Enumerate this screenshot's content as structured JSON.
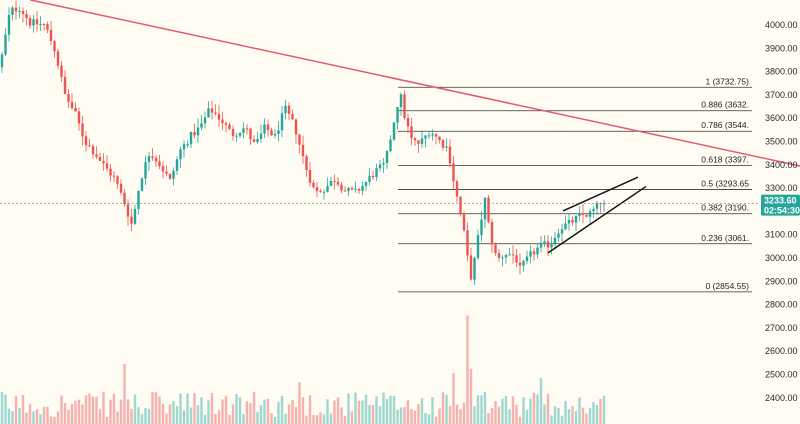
{
  "chart_data": {
    "type": "candlestick",
    "title": "",
    "xlabel": "",
    "ylabel": "",
    "ylim": [
      2360,
      4120
    ],
    "y_ticks": [
      "4000.00",
      "3900.00",
      "3800.00",
      "3700.00",
      "3600.00",
      "3500.00",
      "3400.00",
      "3300.00",
      "3200.00",
      "3100.00",
      "3000.00",
      "2900.00",
      "2800.00",
      "2700.00",
      "2600.00",
      "2500.00",
      "2400.00"
    ],
    "current_price": {
      "value": 3233.6,
      "label": "3233.60",
      "countdown": "02:54:30"
    },
    "fib_levels": [
      {
        "ratio": 1,
        "price": 3732.75,
        "label": "1 (3732.75)"
      },
      {
        "ratio": 0.886,
        "price": 3632,
        "label": "0.886 (3632."
      },
      {
        "ratio": 0.786,
        "price": 3544,
        "label": "0.786 (3544."
      },
      {
        "ratio": 0.618,
        "price": 3397,
        "label": "0.618 (3397."
      },
      {
        "ratio": 0.5,
        "price": 3293.65,
        "label": "0.5 (3293.65"
      },
      {
        "ratio": 0.382,
        "price": 3190,
        "label": "0.382 (3190."
      },
      {
        "ratio": 0.236,
        "price": 3061,
        "label": "0.236 (3061."
      },
      {
        "ratio": 0,
        "price": 2854.55,
        "label": "0 (2854.55)"
      }
    ],
    "price_waypoints": [
      [
        0,
        3820
      ],
      [
        10,
        4060
      ],
      [
        20,
        4075
      ],
      [
        30,
        4010
      ],
      [
        45,
        4000
      ],
      [
        55,
        3890
      ],
      [
        65,
        3700
      ],
      [
        75,
        3620
      ],
      [
        85,
        3500
      ],
      [
        95,
        3450
      ],
      [
        105,
        3390
      ],
      [
        115,
        3340
      ],
      [
        125,
        3230
      ],
      [
        132,
        3140
      ],
      [
        140,
        3330
      ],
      [
        150,
        3460
      ],
      [
        160,
        3400
      ],
      [
        170,
        3330
      ],
      [
        180,
        3460
      ],
      [
        190,
        3520
      ],
      [
        200,
        3560
      ],
      [
        210,
        3640
      ],
      [
        220,
        3600
      ],
      [
        232,
        3530
      ],
      [
        245,
        3560
      ],
      [
        255,
        3480
      ],
      [
        265,
        3560
      ],
      [
        275,
        3520
      ],
      [
        285,
        3640
      ],
      [
        295,
        3560
      ],
      [
        305,
        3400
      ],
      [
        315,
        3280
      ],
      [
        325,
        3300
      ],
      [
        335,
        3340
      ],
      [
        345,
        3290
      ],
      [
        355,
        3280
      ],
      [
        365,
        3320
      ],
      [
        375,
        3370
      ],
      [
        385,
        3400
      ],
      [
        395,
        3610
      ],
      [
        400,
        3710
      ],
      [
        405,
        3600
      ],
      [
        412,
        3500
      ],
      [
        420,
        3490
      ],
      [
        430,
        3550
      ],
      [
        440,
        3500
      ],
      [
        448,
        3470
      ],
      [
        455,
        3300
      ],
      [
        460,
        3200
      ],
      [
        466,
        3060
      ],
      [
        470,
        2900
      ],
      [
        475,
        3000
      ],
      [
        480,
        3140
      ],
      [
        485,
        3250
      ],
      [
        490,
        3100
      ],
      [
        497,
        2990
      ],
      [
        505,
        3020
      ],
      [
        515,
        3010
      ],
      [
        520,
        2950
      ],
      [
        530,
        3010
      ],
      [
        540,
        3050
      ],
      [
        550,
        3060
      ],
      [
        560,
        3130
      ],
      [
        570,
        3150
      ],
      [
        580,
        3180
      ],
      [
        590,
        3190
      ],
      [
        598,
        3225
      ],
      [
        604,
        3234
      ]
    ],
    "volume_ylim": [
      0,
      2.6
    ],
    "volume_spikes": [
      [
        125,
        1.3
      ],
      [
        300,
        0.9
      ],
      [
        452,
        1.1
      ],
      [
        466,
        2.35
      ],
      [
        471,
        1.2
      ],
      [
        540,
        1.0
      ]
    ],
    "colors": {
      "up": "#26a69a",
      "down": "#ef5350",
      "trendline": "#e35b6b",
      "fib_line": "#333333",
      "wedge": "#111111",
      "price_tag": "#26a69a",
      "background": "#fefcf3",
      "up_volume": "#9fd8cf",
      "down_volume": "#f6b0ae"
    },
    "drawings": {
      "trendline": {
        "type": "line",
        "from": [
          30,
          4108
        ],
        "to": [
          800,
          3395
        ]
      },
      "wedge_upper": {
        "type": "line",
        "from": [
          563,
          3202
        ],
        "to": [
          638,
          3347
        ]
      },
      "wedge_lower": {
        "type": "line",
        "from": [
          548,
          3022
        ],
        "to": [
          646,
          3307
        ]
      }
    }
  }
}
